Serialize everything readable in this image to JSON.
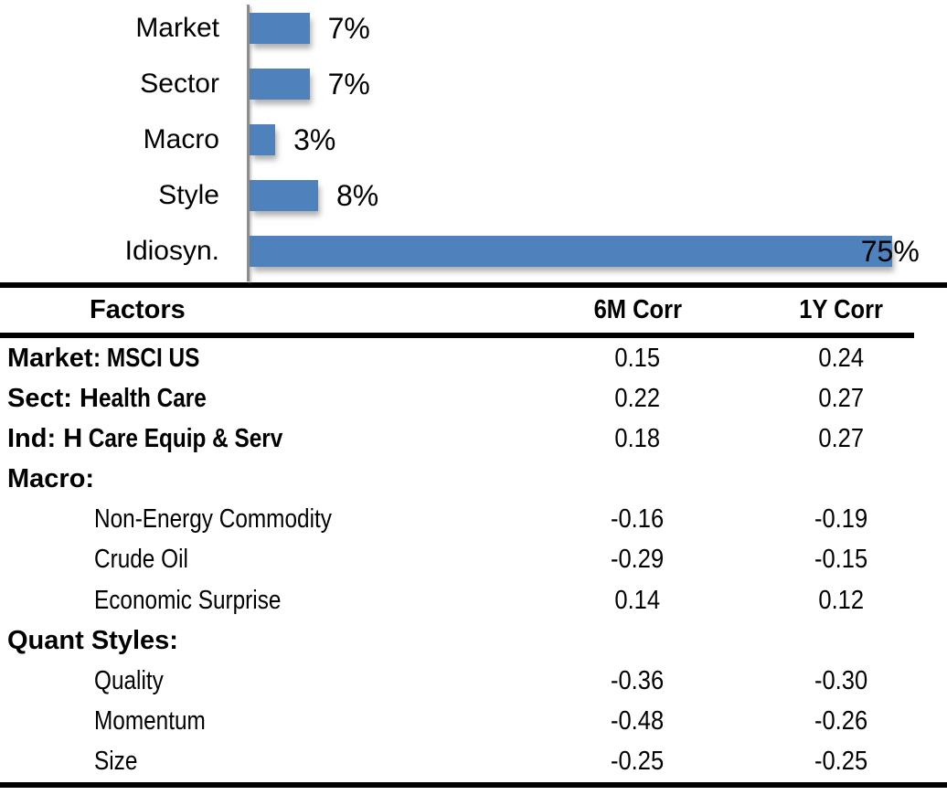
{
  "chart_data": [
    {
      "type": "bar",
      "orientation": "horizontal",
      "title": "",
      "categories": [
        "Market",
        "Sector",
        "Macro",
        "Style",
        "Idiosyn."
      ],
      "values": [
        7,
        7,
        3,
        8,
        75
      ],
      "value_labels": [
        "7%",
        "7%",
        "3%",
        "8%",
        "75%"
      ],
      "xlim": [
        0,
        80
      ],
      "grid": false,
      "legend": false,
      "bar_color": "#4f81bd",
      "axis_color": "#8c8c8c",
      "label_color": "#000000"
    },
    {
      "type": "table",
      "columns": [
        "Factors",
        "6M Corr",
        "1Y Corr"
      ],
      "rows": [
        {
          "factor_bold": "Market",
          "factor_text": ": MSCI US",
          "indent": false,
          "corr_6m": "0.15",
          "corr_1y": "0.24"
        },
        {
          "factor_bold": "Sect: H",
          "factor_text": "ealth Care",
          "indent": false,
          "corr_6m": "0.22",
          "corr_1y": "0.27"
        },
        {
          "factor_bold": "Ind: H",
          "factor_text": " Care Equip & Serv",
          "indent": false,
          "corr_6m": "0.18",
          "corr_1y": "0.27"
        },
        {
          "factor_bold": "Macro:",
          "factor_text": "",
          "indent": false,
          "corr_6m": "",
          "corr_1y": ""
        },
        {
          "factor_bold": "",
          "factor_text": "Non-Energy Commodity",
          "indent": true,
          "corr_6m": "-0.16",
          "corr_1y": "-0.19"
        },
        {
          "factor_bold": "",
          "factor_text": "Crude Oil",
          "indent": true,
          "corr_6m": "-0.29",
          "corr_1y": "-0.15"
        },
        {
          "factor_bold": "",
          "factor_text": "Economic Surprise",
          "indent": true,
          "corr_6m": "0.14",
          "corr_1y": "0.12"
        },
        {
          "factor_bold": "Quant Styles:",
          "factor_text": "",
          "indent": false,
          "corr_6m": "",
          "corr_1y": ""
        },
        {
          "factor_bold": "",
          "factor_text": "Quality",
          "indent": true,
          "corr_6m": "-0.36",
          "corr_1y": "-0.30"
        },
        {
          "factor_bold": "",
          "factor_text": "Momentum",
          "indent": true,
          "corr_6m": "-0.48",
          "corr_1y": "-0.26"
        },
        {
          "factor_bold": "",
          "factor_text": "Size",
          "indent": true,
          "corr_6m": "-0.25",
          "corr_1y": "-0.25"
        }
      ],
      "rule_color": "#000000"
    }
  ]
}
